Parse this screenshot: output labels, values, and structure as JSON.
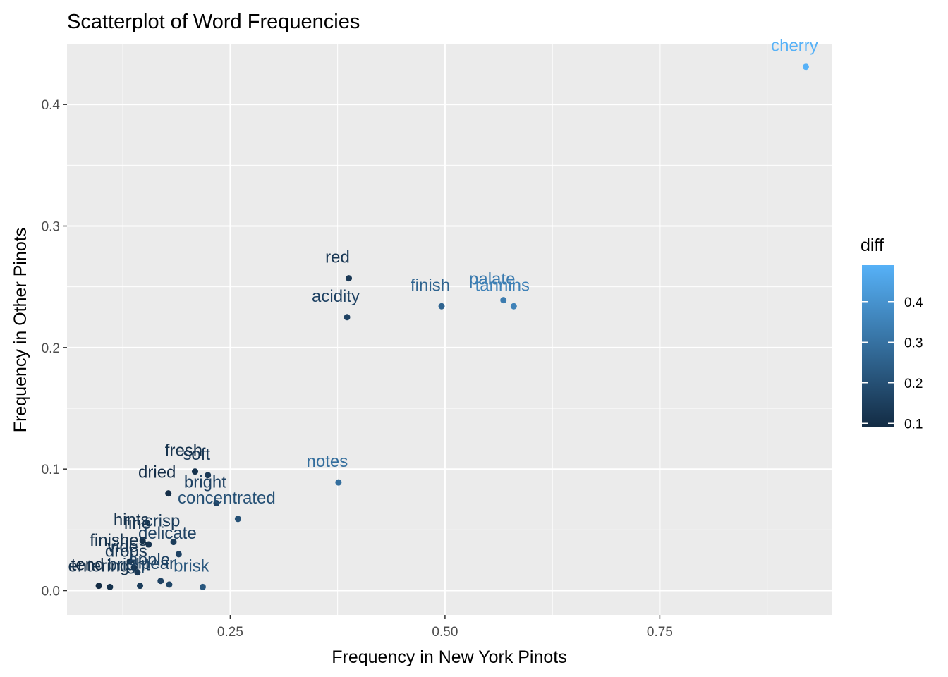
{
  "chart_data": {
    "type": "scatter",
    "title": "Scatterplot of Word Frequencies",
    "xlabel": "Frequency in New York Pinots",
    "ylabel": "Frequency in Other Pinots",
    "xlim": [
      0.06,
      0.95
    ],
    "ylim": [
      -0.02,
      0.45
    ],
    "x_ticks": [
      0.25,
      0.5,
      0.75
    ],
    "x_tick_labels": [
      "0.25",
      "0.50",
      "0.75"
    ],
    "y_ticks": [
      0.0,
      0.1,
      0.2,
      0.3,
      0.4
    ],
    "y_tick_labels": [
      "0.0",
      "0.1",
      "0.2",
      "0.3",
      "0.4"
    ],
    "grid": true,
    "color_scale": {
      "name": "diff",
      "min": 0.09,
      "max": 0.49,
      "low_color": "#132B43",
      "high_color": "#56B1F7",
      "breaks": [
        0.1,
        0.2,
        0.3,
        0.4
      ],
      "break_labels": [
        "0.1",
        "0.2",
        "0.3",
        "0.4"
      ],
      "legend_position": "right"
    },
    "points": [
      {
        "x": 0.92,
        "y": 0.431,
        "diff": 0.49,
        "label": "cherry"
      },
      {
        "x": 0.388,
        "y": 0.257,
        "diff": 0.13,
        "label": "red"
      },
      {
        "x": 0.386,
        "y": 0.225,
        "diff": 0.16,
        "label": "acidity"
      },
      {
        "x": 0.496,
        "y": 0.234,
        "diff": 0.26,
        "label": "finish"
      },
      {
        "x": 0.568,
        "y": 0.239,
        "diff": 0.33,
        "label": "palate"
      },
      {
        "x": 0.58,
        "y": 0.234,
        "diff": 0.35,
        "label": "tannins"
      },
      {
        "x": 0.376,
        "y": 0.089,
        "diff": 0.29,
        "label": "notes"
      },
      {
        "x": 0.209,
        "y": 0.098,
        "diff": 0.11,
        "label": "fresh"
      },
      {
        "x": 0.224,
        "y": 0.095,
        "diff": 0.13,
        "label": "soft"
      },
      {
        "x": 0.178,
        "y": 0.08,
        "diff": 0.1,
        "label": "dried"
      },
      {
        "x": 0.234,
        "y": 0.072,
        "diff": 0.16,
        "label": "bright"
      },
      {
        "x": 0.259,
        "y": 0.059,
        "diff": 0.2,
        "label": "concentrated"
      },
      {
        "x": 0.148,
        "y": 0.041,
        "diff": 0.11,
        "label": "hints"
      },
      {
        "x": 0.184,
        "y": 0.04,
        "diff": 0.14,
        "label": "crisp"
      },
      {
        "x": 0.155,
        "y": 0.038,
        "diff": 0.12,
        "label": "fine"
      },
      {
        "x": 0.19,
        "y": 0.03,
        "diff": 0.16,
        "label": "delicate"
      },
      {
        "x": 0.133,
        "y": 0.024,
        "diff": 0.11,
        "label": "finishes"
      },
      {
        "x": 0.138,
        "y": 0.019,
        "diff": 0.12,
        "label": "vide"
      },
      {
        "x": 0.142,
        "y": 0.015,
        "diff": 0.13,
        "label": "drops"
      },
      {
        "x": 0.218,
        "y": 0.003,
        "diff": 0.22,
        "label": "brisk"
      },
      {
        "x": 0.097,
        "y": 0.004,
        "diff": 0.09,
        "label": "tend"
      },
      {
        "x": 0.11,
        "y": 0.003,
        "diff": 0.11,
        "label": "entering"
      },
      {
        "x": 0.145,
        "y": 0.004,
        "diff": 0.14,
        "label": "bright"
      },
      {
        "x": 0.169,
        "y": 0.008,
        "diff": 0.16,
        "label": "apple"
      },
      {
        "x": 0.179,
        "y": 0.005,
        "diff": 0.17,
        "label": "pear"
      }
    ]
  }
}
